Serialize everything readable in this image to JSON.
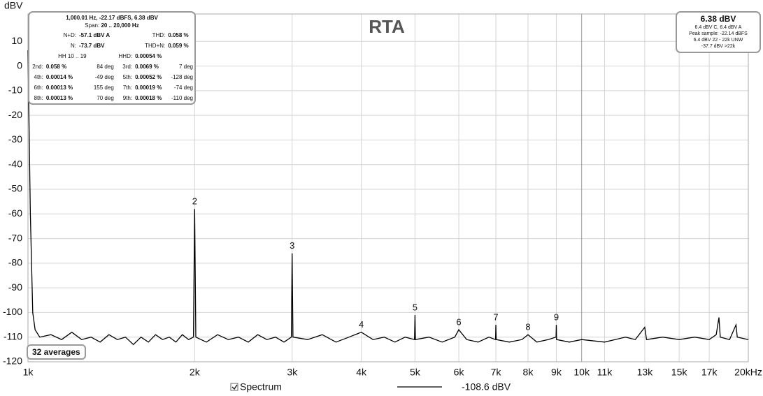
{
  "chart_data": {
    "type": "line",
    "title": "RTA",
    "y_label": "dBV",
    "xscale": "log",
    "grid": true,
    "xlim": [
      1000,
      20000
    ],
    "ylim": [
      -120,
      20
    ],
    "yticks": [
      -120,
      -110,
      -100,
      -90,
      -80,
      -70,
      -60,
      -50,
      -40,
      -30,
      -20,
      -10,
      0,
      10
    ],
    "xticks": [
      {
        "value": 1000,
        "label": "1k"
      },
      {
        "value": 2000,
        "label": "2k"
      },
      {
        "value": 3000,
        "label": "3k"
      },
      {
        "value": 4000,
        "label": "4k"
      },
      {
        "value": 5000,
        "label": "5k"
      },
      {
        "value": 6000,
        "label": "6k"
      },
      {
        "value": 7000,
        "label": "7k"
      },
      {
        "value": 8000,
        "label": "8k"
      },
      {
        "value": 9000,
        "label": "9k"
      },
      {
        "value": 10000,
        "label": "10k"
      },
      {
        "value": 11000,
        "label": "11k"
      },
      {
        "value": 13000,
        "label": "13k"
      },
      {
        "value": 15000,
        "label": "15k"
      },
      {
        "value": 17000,
        "label": "17k"
      },
      {
        "value": 20000,
        "label": "20kHz"
      }
    ],
    "series": [
      {
        "name": "Spectrum",
        "color": "#000000",
        "legend_value": "-108.6 dBV",
        "x": [
          1000,
          1010,
          1020,
          1030,
          1050,
          1100,
          1150,
          1200,
          1250,
          1300,
          1350,
          1400,
          1450,
          1500,
          1550,
          1600,
          1650,
          1700,
          1750,
          1800,
          1850,
          1900,
          1950,
          1990,
          2000,
          2010,
          2100,
          2200,
          2300,
          2400,
          2500,
          2600,
          2700,
          2800,
          2900,
          2990,
          3000,
          3010,
          3200,
          3400,
          3600,
          3800,
          4000,
          4200,
          4400,
          4600,
          4800,
          4990,
          5000,
          5010,
          5300,
          5600,
          5900,
          6000,
          6200,
          6500,
          6800,
          6990,
          7000,
          7010,
          7400,
          7800,
          8000,
          8300,
          8700,
          8990,
          9000,
          9010,
          9500,
          10000,
          11000,
          12000,
          12500,
          13000,
          13100,
          14000,
          15000,
          16000,
          17000,
          17500,
          17700,
          17800,
          18500,
          19000,
          19100,
          20000
        ],
        "values": [
          6.4,
          -60,
          -100,
          -107,
          -110,
          -109,
          -111,
          -108,
          -111,
          -110,
          -112,
          -109,
          -111,
          -110,
          -113,
          -110,
          -112,
          -109,
          -111,
          -110,
          -112,
          -109,
          -111,
          -110,
          -58,
          -110,
          -112,
          -109,
          -111,
          -110,
          -112,
          -109,
          -111,
          -110,
          -112,
          -110,
          -76,
          -110,
          -111,
          -109,
          -112,
          -110,
          -108,
          -111,
          -110,
          -112,
          -110,
          -111,
          -101,
          -111,
          -110,
          -112,
          -110,
          -107,
          -111,
          -112,
          -110,
          -111,
          -105,
          -111,
          -112,
          -111,
          -109,
          -112,
          -111,
          -110,
          -105,
          -111,
          -112,
          -111,
          -112,
          -110,
          -111,
          -106,
          -111,
          -110,
          -111,
          -110,
          -111,
          -109,
          -102,
          -110,
          -111,
          -105,
          -110,
          -111
        ]
      }
    ],
    "annotations": [
      {
        "text": "2",
        "x": 2000,
        "y": -58
      },
      {
        "text": "3",
        "x": 3000,
        "y": -76
      },
      {
        "text": "4",
        "x": 4000,
        "y": -108
      },
      {
        "text": "5",
        "x": 5000,
        "y": -101
      },
      {
        "text": "6",
        "x": 6000,
        "y": -107
      },
      {
        "text": "7",
        "x": 7000,
        "y": -105
      },
      {
        "text": "8",
        "x": 8000,
        "y": -109
      },
      {
        "text": "9",
        "x": 9000,
        "y": -105
      }
    ],
    "averages": "32 averages",
    "info_box": {
      "header": "1,000.01 Hz, -22.17 dBFS, 6.38 dBV",
      "span_label": "Span:",
      "span": "20 .. 20,000 Hz",
      "summary": [
        [
          "N+D:",
          "-57.1 dBV A",
          "THD:",
          "0.058 %"
        ],
        [
          "N:",
          "-73.7 dBV",
          "THD+N:",
          "0.059 %"
        ]
      ],
      "hh": [
        "HH 10 .. 19",
        "HHD:",
        "0.00054 %"
      ],
      "harmonics": [
        [
          "2nd:",
          "0.058 %",
          "84 deg",
          "3rd:",
          "0.0069 %",
          "7 deg"
        ],
        [
          "4th:",
          "0.00014 %",
          "-49 deg",
          "5th:",
          "0.00052 %",
          "-128 deg"
        ],
        [
          "6th:",
          "0.00013 %",
          "155 deg",
          "7th:",
          "0.00019 %",
          "-74 deg"
        ],
        [
          "8th:",
          "0.00013 %",
          "70 deg",
          "9th:",
          "0.00018 %",
          "-110 deg"
        ]
      ]
    },
    "level_box": [
      "6.38 dBV",
      "6.4 dBV C, 6.4 dBV A",
      "Peak sample: -22.14 dBFS",
      "6.4 dBV 22 - 22k UNW",
      "-37.7 dBV >22k"
    ]
  }
}
